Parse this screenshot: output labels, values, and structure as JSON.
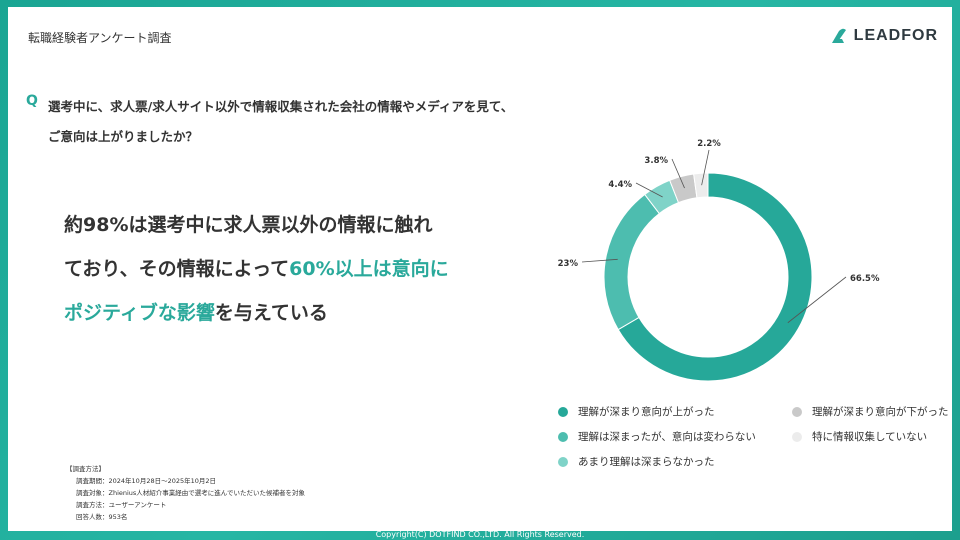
{
  "header": {
    "label": "転職経験者アンケート調査",
    "logo_text": "LEADFOR"
  },
  "question": {
    "mark": "Q",
    "line1": "選考中に、求人票/求人サイト以外で情報収集された会社の情報やメディアを見て、",
    "line2": "ご意向は上がりましたか？"
  },
  "headline": {
    "line1": "約98%は選考中に求人票以外の情報に触れ",
    "line2_plain": "ており、その情報によって",
    "line2_highlight": "60%以上は意向に",
    "line3_highlight": "ポジティブな影響",
    "line3_plain": "を与えている"
  },
  "colors": {
    "accent": "#2aa99b",
    "brand": "#26b6a4"
  },
  "chart_data": {
    "type": "pie",
    "donut": true,
    "series": [
      {
        "name": "理解が深まり意向が上がった",
        "value": 66.5,
        "label": "66.5%",
        "color": "#26a899"
      },
      {
        "name": "理解は深まったが、意向は変わらない",
        "value": 23,
        "label": "23%",
        "color": "#4dbdaf"
      },
      {
        "name": "あまり理解は深まらなかった",
        "value": 4.4,
        "label": "4.4%",
        "color": "#7fd3c8"
      },
      {
        "name": "理解が深まり意向が下がった",
        "value": 3.8,
        "label": "3.8%",
        "color": "#c9c9c9"
      },
      {
        "name": "特に情報収集していない",
        "value": 2.2,
        "label": "2.2%",
        "color": "#ececec"
      }
    ]
  },
  "legend": [
    {
      "label": "理解が深まり意向が上がった",
      "color": "#26a899"
    },
    {
      "label": "理解が深まり意向が下がった",
      "color": "#c9c9c9"
    },
    {
      "label": "理解は深まったが、意向は変わらない",
      "color": "#4dbdaf"
    },
    {
      "label": "特に情報収集していない",
      "color": "#ececec"
    },
    {
      "label": "あまり理解は深まらなかった",
      "color": "#7fd3c8"
    }
  ],
  "method": {
    "title": "【調査方法】",
    "rows": [
      "調査期間：2024年10月28日～2025年10月2日",
      "調査対象：Zhienius人材紹介事業経由で選考に進んでいただいた候補者を対象",
      "調査方法：ユーザーアンケート",
      "回答人数：953名"
    ]
  },
  "footer": {
    "copyright": "Copyright(C) DOTFIND CO.,LTD. All Rights Reserved."
  }
}
